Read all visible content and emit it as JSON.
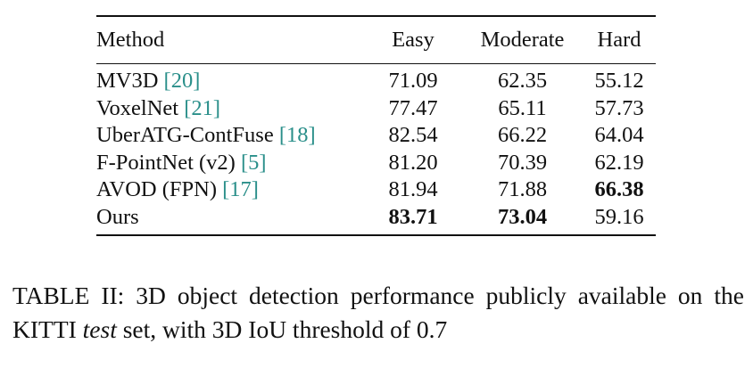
{
  "table": {
    "headers": {
      "method": "Method",
      "easy": "Easy",
      "moderate": "Moderate",
      "hard": "Hard"
    },
    "rows": [
      {
        "method": "MV3D",
        "cite": "[20]",
        "easy": "71.09",
        "moderate": "62.35",
        "hard": "55.12",
        "bold": []
      },
      {
        "method": "VoxelNet",
        "cite": "[21]",
        "easy": "77.47",
        "moderate": "65.11",
        "hard": "57.73",
        "bold": []
      },
      {
        "method": "UberATG-ContFuse",
        "cite": "[18]",
        "easy": "82.54",
        "moderate": "66.22",
        "hard": "64.04",
        "bold": []
      },
      {
        "method": "F-PointNet (v2)",
        "cite": "[5]",
        "easy": "81.20",
        "moderate": "70.39",
        "hard": "62.19",
        "bold": []
      },
      {
        "method": "AVOD (FPN)",
        "cite": "[17]",
        "easy": "81.94",
        "moderate": "71.88",
        "hard": "66.38",
        "bold": [
          "hard"
        ]
      },
      {
        "method": "Ours",
        "cite": "",
        "easy": "83.71",
        "moderate": "73.04",
        "hard": "59.16",
        "bold": [
          "easy",
          "moderate"
        ]
      }
    ]
  },
  "caption": {
    "label": "TABLE II:",
    "text_before": " 3D object detection performance publicly available on the KITTI ",
    "italic": "test",
    "text_after": " set, with 3D IoU threshold of 0.7"
  },
  "colors": {
    "citation": "#2a8f8a",
    "text": "#111111"
  }
}
